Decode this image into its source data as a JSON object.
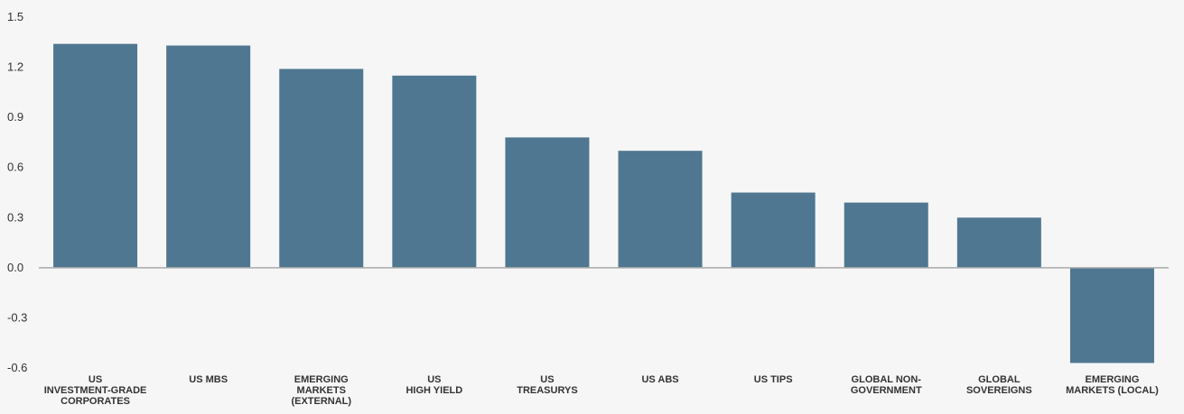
{
  "chart_data": {
    "type": "bar",
    "title": "",
    "xlabel": "",
    "ylabel": "",
    "ylim": [
      -0.6,
      1.5
    ],
    "yticks": [
      "1.5",
      "1.2",
      "0.9",
      "0.6",
      "0.3",
      "0.0",
      "-0.3",
      "-0.6"
    ],
    "ytick_values": [
      1.5,
      1.2,
      0.9,
      0.6,
      0.3,
      0.0,
      -0.3,
      -0.6
    ],
    "grid": false,
    "legend": "none",
    "categories": [
      [
        "US",
        "INVESTMENT-GRADE",
        "CORPORATES"
      ],
      [
        "US MBS"
      ],
      [
        "EMERGING",
        "MARKETS",
        "(EXTERNAL)"
      ],
      [
        "US",
        "HIGH YIELD"
      ],
      [
        "US",
        "TREASURYS"
      ],
      [
        "US ABS"
      ],
      [
        "US TIPS"
      ],
      [
        "GLOBAL NON-",
        "GOVERNMENT"
      ],
      [
        "GLOBAL",
        "SOVEREIGNS"
      ],
      [
        "EMERGING",
        "MARKETS (LOCAL)"
      ]
    ],
    "values": [
      1.34,
      1.33,
      1.19,
      1.15,
      0.78,
      0.7,
      0.45,
      0.39,
      0.3,
      -0.57
    ],
    "colors": {
      "bar": "#4f7791",
      "axis": "#aaaaaa",
      "text": "#333333",
      "background": "#f6f6f6"
    }
  }
}
